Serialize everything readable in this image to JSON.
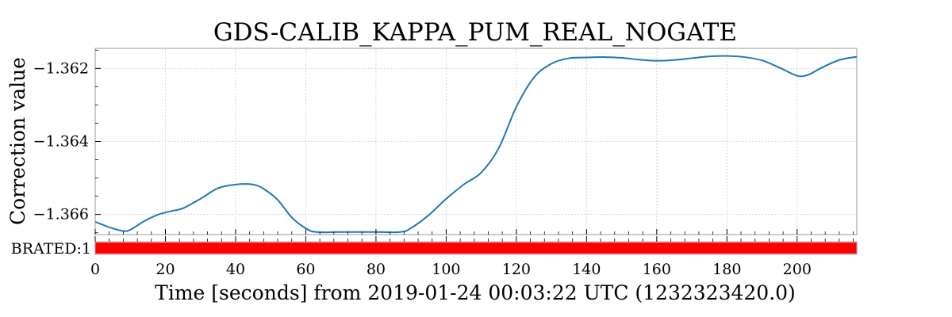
{
  "chart_data": {
    "type": "line",
    "title": "GDS-CALIB_KAPPA_PUM_REAL_NOGATE",
    "xlabel": "Time [seconds] from 2019-01-24 00:03:22 UTC (1232323420.0)",
    "ylabel": "Correction value",
    "xlim": [
      0,
      217
    ],
    "ylim": [
      -1.36655,
      -1.36145
    ],
    "grid": true,
    "x_ticks": [
      0,
      20,
      40,
      60,
      80,
      100,
      120,
      140,
      160,
      180,
      200
    ],
    "x_tick_labels": [
      "0",
      "20",
      "40",
      "60",
      "80",
      "100",
      "120",
      "140",
      "160",
      "180",
      "200"
    ],
    "y_ticks": [
      -1.362,
      -1.364,
      -1.366
    ],
    "y_tick_labels": [
      "−1.362",
      "−1.364",
      "−1.366"
    ],
    "series": [
      {
        "color": "#1f77b4",
        "x": [
          0,
          4,
          8,
          10,
          14,
          18,
          22,
          25,
          30,
          35,
          40,
          45,
          48,
          52,
          56,
          60,
          63,
          70,
          80,
          87,
          90,
          95,
          100,
          105,
          110,
          115,
          120,
          125,
          130,
          135,
          140,
          145,
          150,
          155,
          160,
          165,
          170,
          175,
          180,
          185,
          190,
          195,
          200,
          203,
          207,
          212,
          217
        ],
        "y": [
          -1.3662,
          -1.36635,
          -1.36645,
          -1.36642,
          -1.36618,
          -1.366,
          -1.3659,
          -1.36583,
          -1.36557,
          -1.36528,
          -1.36518,
          -1.36518,
          -1.3653,
          -1.3656,
          -1.36608,
          -1.36638,
          -1.36648,
          -1.36648,
          -1.36648,
          -1.36648,
          -1.36637,
          -1.36602,
          -1.36557,
          -1.36518,
          -1.36485,
          -1.36418,
          -1.36305,
          -1.36225,
          -1.36187,
          -1.36172,
          -1.3617,
          -1.36169,
          -1.36171,
          -1.36176,
          -1.36179,
          -1.36177,
          -1.36172,
          -1.36167,
          -1.36166,
          -1.36169,
          -1.36178,
          -1.36198,
          -1.3622,
          -1.36218,
          -1.36198,
          -1.36177,
          -1.36168
        ]
      }
    ],
    "state_bar": {
      "label": "BRATED:1",
      "color": "#ff0000",
      "xlim": [
        0,
        217
      ]
    }
  }
}
